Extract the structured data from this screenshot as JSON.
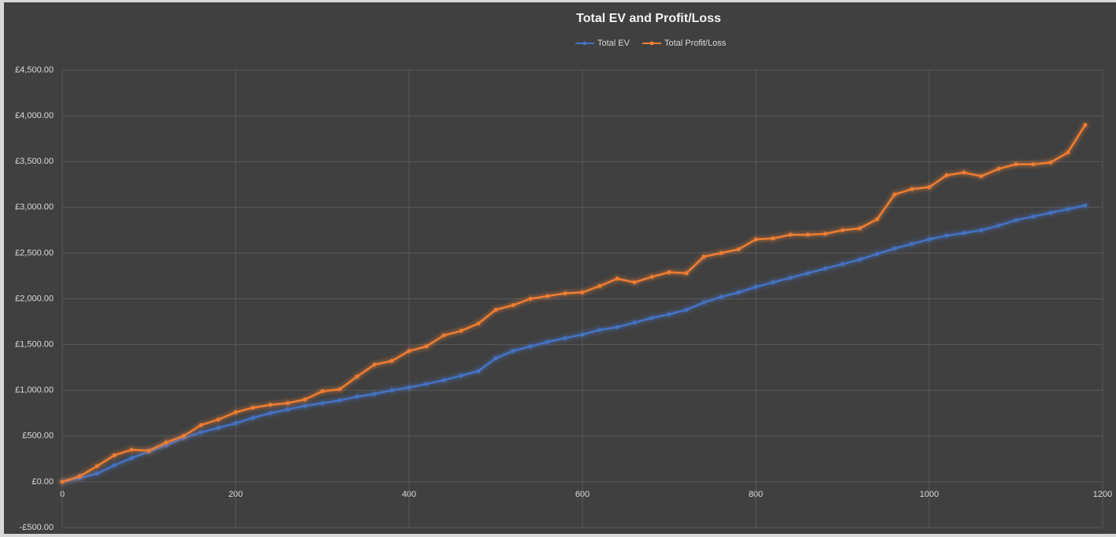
{
  "chart_data": {
    "type": "line",
    "title": "Total EV and Profit/Loss",
    "x": [
      0,
      20,
      40,
      60,
      80,
      100,
      120,
      140,
      160,
      180,
      200,
      220,
      240,
      260,
      280,
      300,
      320,
      340,
      360,
      380,
      400,
      420,
      440,
      460,
      480,
      500,
      520,
      540,
      560,
      580,
      600,
      620,
      640,
      660,
      680,
      700,
      720,
      740,
      760,
      780,
      800,
      820,
      840,
      860,
      880,
      900,
      920,
      940,
      960,
      980,
      1000,
      1020,
      1040,
      1060,
      1080,
      1100,
      1120,
      1140,
      1160,
      1180
    ],
    "series": [
      {
        "name": "Total EV",
        "color": "#4472c4",
        "values": [
          0,
          40,
          90,
          180,
          260,
          330,
          400,
          480,
          540,
          590,
          640,
          700,
          750,
          790,
          830,
          860,
          890,
          930,
          960,
          1000,
          1030,
          1070,
          1110,
          1160,
          1210,
          1350,
          1430,
          1480,
          1530,
          1570,
          1610,
          1660,
          1690,
          1740,
          1790,
          1830,
          1880,
          1960,
          2020,
          2070,
          2130,
          2180,
          2230,
          2280,
          2330,
          2380,
          2430,
          2490,
          2550,
          2600,
          2650,
          2690,
          2720,
          2750,
          2800,
          2860,
          2900,
          2940,
          2980,
          3020
        ]
      },
      {
        "name": "Total Profit/Loss",
        "color": "#ed7d31",
        "values": [
          0,
          60,
          170,
          290,
          350,
          340,
          430,
          500,
          620,
          680,
          760,
          810,
          840,
          860,
          900,
          990,
          1010,
          1150,
          1280,
          1320,
          1430,
          1480,
          1600,
          1650,
          1730,
          1880,
          1930,
          2000,
          2030,
          2060,
          2070,
          2140,
          2220,
          2180,
          2240,
          2290,
          2280,
          2460,
          2500,
          2540,
          2650,
          2660,
          2700,
          2700,
          2710,
          2750,
          2770,
          2870,
          3140,
          3200,
          3220,
          3350,
          3380,
          3340,
          3420,
          3470,
          3470,
          3490,
          3600,
          3900
        ]
      }
    ],
    "xlim": [
      0,
      1200
    ],
    "xticks": [
      0,
      200,
      400,
      600,
      800,
      1000,
      1200
    ],
    "ylim": [
      -500,
      4500
    ],
    "yticks": [
      {
        "value": -500,
        "label": "-£500.00"
      },
      {
        "value": 0,
        "label": "£0.00"
      },
      {
        "value": 500,
        "label": "£500.00"
      },
      {
        "value": 1000,
        "label": "£1,000.00"
      },
      {
        "value": 1500,
        "label": "£1,500.00"
      },
      {
        "value": 2000,
        "label": "£2,000.00"
      },
      {
        "value": 2500,
        "label": "£2,500.00"
      },
      {
        "value": 3000,
        "label": "£3,000.00"
      },
      {
        "value": 3500,
        "label": "£3,500.00"
      },
      {
        "value": 4000,
        "label": "£4,000.00"
      },
      {
        "value": 4500,
        "label": "£4,500.00"
      }
    ],
    "grid": true,
    "legend": "top"
  }
}
